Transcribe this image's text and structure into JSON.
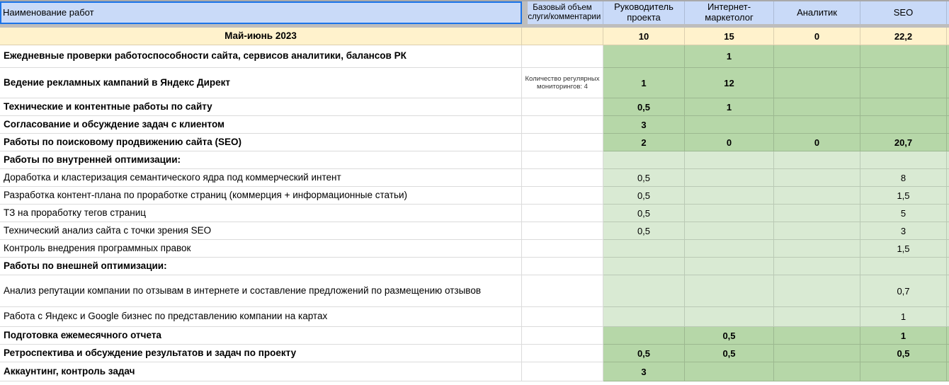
{
  "colors": {
    "header_bg": "#c9daf8",
    "selection_blue": "#1a73e8",
    "period_bg": "#fff2cc",
    "dark_green": "#b6d7a8",
    "light_green": "#d9ead3"
  },
  "header": {
    "columns": [
      "Наименование работ",
      "Базовый объем услуги/комментарии",
      "Руководитель проекта",
      "Интернет-маркетолог",
      "Аналитик",
      "SEO"
    ]
  },
  "period_row": {
    "label": "Май-июнь 2023",
    "comment": "",
    "values": [
      "10",
      "15",
      "0",
      "22,2"
    ]
  },
  "rows": [
    {
      "label": "Ежедневные проверки работоспособности сайта, сервисов аналитики, балансов РК",
      "comment": "",
      "values": [
        "",
        "1",
        "",
        ""
      ]
    },
    {
      "label": "Ведение рекламных кампаний в Яндекс Директ",
      "comment": "Количество регулярных мониторингов: 4",
      "values": [
        "1",
        "12",
        "",
        ""
      ]
    },
    {
      "label": "Технические и контентные работы по сайту",
      "comment": "",
      "values": [
        "0,5",
        "1",
        "",
        ""
      ]
    },
    {
      "label": "Согласование и обсуждение задач с клиентом",
      "comment": "",
      "values": [
        "3",
        "",
        "",
        ""
      ]
    },
    {
      "label": "Работы по поисковому продвижению сайта (SEO)",
      "comment": "",
      "values": [
        "2",
        "0",
        "0",
        "20,7"
      ]
    },
    {
      "label": "Работы по внутренней оптимизации:",
      "comment": "",
      "values": [
        "",
        "",
        "",
        ""
      ]
    },
    {
      "label": "Доработка и кластеризация семантического ядра под коммерческий интент",
      "comment": "",
      "values": [
        "0,5",
        "",
        "",
        "8"
      ]
    },
    {
      "label": "Разработка контент-плана по проработке страниц (коммерция + информационные статьи)",
      "comment": "",
      "values": [
        "0,5",
        "",
        "",
        "1,5"
      ]
    },
    {
      "label": "ТЗ на проработку тегов страниц",
      "comment": "",
      "values": [
        "0,5",
        "",
        "",
        "5"
      ]
    },
    {
      "label": "Технический анализ сайта с точки зрения SEO",
      "comment": "",
      "values": [
        "0,5",
        "",
        "",
        "3"
      ]
    },
    {
      "label": "Контроль внедрения программных правок",
      "comment": "",
      "values": [
        "",
        "",
        "",
        "1,5"
      ]
    },
    {
      "label": "Работы по внешней оптимизации:",
      "comment": "",
      "values": [
        "",
        "",
        "",
        ""
      ]
    },
    {
      "label": "Анализ репутации компании по отзывам в интернете и составление предложений по размещению отзывов",
      "comment": "",
      "values": [
        "",
        "",
        "",
        "0,7"
      ]
    },
    {
      "label": "Работа с Яндекс и Google бизнес по представлению компании на картах",
      "comment": "",
      "values": [
        "",
        "",
        "",
        "1"
      ]
    },
    {
      "label": "Подготовка ежемесячного отчета",
      "comment": "",
      "values": [
        "",
        "0,5",
        "",
        "1"
      ]
    },
    {
      "label": "Ретроспектива и обсуждение результатов и задач по проекту",
      "comment": "",
      "values": [
        "0,5",
        "0,5",
        "",
        "0,5"
      ]
    },
    {
      "label": "Аккаунтинг, контроль задач",
      "comment": "",
      "values": [
        "3",
        "",
        "",
        ""
      ]
    }
  ]
}
